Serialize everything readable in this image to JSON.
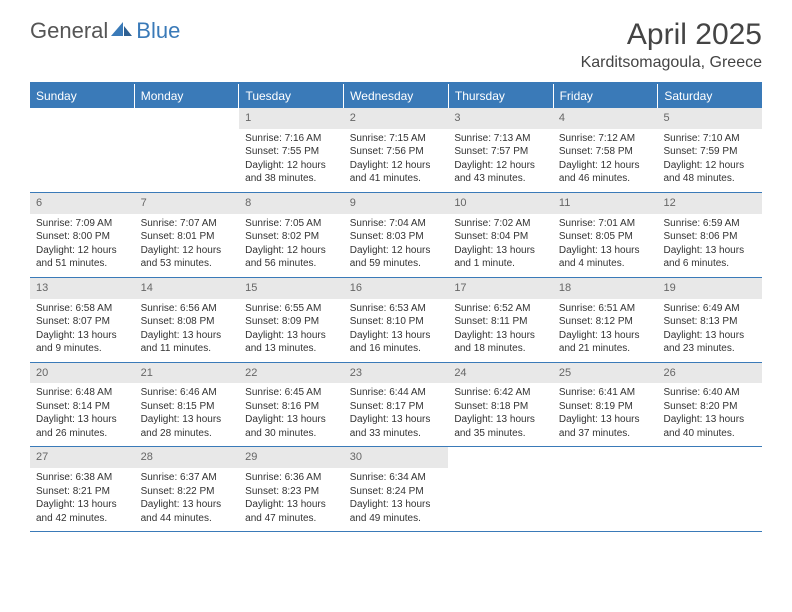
{
  "logo": {
    "text_general": "General",
    "text_blue": "Blue"
  },
  "title": "April 2025",
  "location": "Karditsomagoula, Greece",
  "colors": {
    "header_bg": "#3a7ab8",
    "header_text": "#ffffff",
    "daynum_bg": "#e8e8e8",
    "daynum_text": "#666666",
    "border": "#3a7ab8",
    "body_text": "#333333",
    "title_text": "#444444"
  },
  "day_headers": [
    "Sunday",
    "Monday",
    "Tuesday",
    "Wednesday",
    "Thursday",
    "Friday",
    "Saturday"
  ],
  "weeks": [
    [
      null,
      null,
      {
        "n": "1",
        "sunrise": "Sunrise: 7:16 AM",
        "sunset": "Sunset: 7:55 PM",
        "daylight": "Daylight: 12 hours and 38 minutes."
      },
      {
        "n": "2",
        "sunrise": "Sunrise: 7:15 AM",
        "sunset": "Sunset: 7:56 PM",
        "daylight": "Daylight: 12 hours and 41 minutes."
      },
      {
        "n": "3",
        "sunrise": "Sunrise: 7:13 AM",
        "sunset": "Sunset: 7:57 PM",
        "daylight": "Daylight: 12 hours and 43 minutes."
      },
      {
        "n": "4",
        "sunrise": "Sunrise: 7:12 AM",
        "sunset": "Sunset: 7:58 PM",
        "daylight": "Daylight: 12 hours and 46 minutes."
      },
      {
        "n": "5",
        "sunrise": "Sunrise: 7:10 AM",
        "sunset": "Sunset: 7:59 PM",
        "daylight": "Daylight: 12 hours and 48 minutes."
      }
    ],
    [
      {
        "n": "6",
        "sunrise": "Sunrise: 7:09 AM",
        "sunset": "Sunset: 8:00 PM",
        "daylight": "Daylight: 12 hours and 51 minutes."
      },
      {
        "n": "7",
        "sunrise": "Sunrise: 7:07 AM",
        "sunset": "Sunset: 8:01 PM",
        "daylight": "Daylight: 12 hours and 53 minutes."
      },
      {
        "n": "8",
        "sunrise": "Sunrise: 7:05 AM",
        "sunset": "Sunset: 8:02 PM",
        "daylight": "Daylight: 12 hours and 56 minutes."
      },
      {
        "n": "9",
        "sunrise": "Sunrise: 7:04 AM",
        "sunset": "Sunset: 8:03 PM",
        "daylight": "Daylight: 12 hours and 59 minutes."
      },
      {
        "n": "10",
        "sunrise": "Sunrise: 7:02 AM",
        "sunset": "Sunset: 8:04 PM",
        "daylight": "Daylight: 13 hours and 1 minute."
      },
      {
        "n": "11",
        "sunrise": "Sunrise: 7:01 AM",
        "sunset": "Sunset: 8:05 PM",
        "daylight": "Daylight: 13 hours and 4 minutes."
      },
      {
        "n": "12",
        "sunrise": "Sunrise: 6:59 AM",
        "sunset": "Sunset: 8:06 PM",
        "daylight": "Daylight: 13 hours and 6 minutes."
      }
    ],
    [
      {
        "n": "13",
        "sunrise": "Sunrise: 6:58 AM",
        "sunset": "Sunset: 8:07 PM",
        "daylight": "Daylight: 13 hours and 9 minutes."
      },
      {
        "n": "14",
        "sunrise": "Sunrise: 6:56 AM",
        "sunset": "Sunset: 8:08 PM",
        "daylight": "Daylight: 13 hours and 11 minutes."
      },
      {
        "n": "15",
        "sunrise": "Sunrise: 6:55 AM",
        "sunset": "Sunset: 8:09 PM",
        "daylight": "Daylight: 13 hours and 13 minutes."
      },
      {
        "n": "16",
        "sunrise": "Sunrise: 6:53 AM",
        "sunset": "Sunset: 8:10 PM",
        "daylight": "Daylight: 13 hours and 16 minutes."
      },
      {
        "n": "17",
        "sunrise": "Sunrise: 6:52 AM",
        "sunset": "Sunset: 8:11 PM",
        "daylight": "Daylight: 13 hours and 18 minutes."
      },
      {
        "n": "18",
        "sunrise": "Sunrise: 6:51 AM",
        "sunset": "Sunset: 8:12 PM",
        "daylight": "Daylight: 13 hours and 21 minutes."
      },
      {
        "n": "19",
        "sunrise": "Sunrise: 6:49 AM",
        "sunset": "Sunset: 8:13 PM",
        "daylight": "Daylight: 13 hours and 23 minutes."
      }
    ],
    [
      {
        "n": "20",
        "sunrise": "Sunrise: 6:48 AM",
        "sunset": "Sunset: 8:14 PM",
        "daylight": "Daylight: 13 hours and 26 minutes."
      },
      {
        "n": "21",
        "sunrise": "Sunrise: 6:46 AM",
        "sunset": "Sunset: 8:15 PM",
        "daylight": "Daylight: 13 hours and 28 minutes."
      },
      {
        "n": "22",
        "sunrise": "Sunrise: 6:45 AM",
        "sunset": "Sunset: 8:16 PM",
        "daylight": "Daylight: 13 hours and 30 minutes."
      },
      {
        "n": "23",
        "sunrise": "Sunrise: 6:44 AM",
        "sunset": "Sunset: 8:17 PM",
        "daylight": "Daylight: 13 hours and 33 minutes."
      },
      {
        "n": "24",
        "sunrise": "Sunrise: 6:42 AM",
        "sunset": "Sunset: 8:18 PM",
        "daylight": "Daylight: 13 hours and 35 minutes."
      },
      {
        "n": "25",
        "sunrise": "Sunrise: 6:41 AM",
        "sunset": "Sunset: 8:19 PM",
        "daylight": "Daylight: 13 hours and 37 minutes."
      },
      {
        "n": "26",
        "sunrise": "Sunrise: 6:40 AM",
        "sunset": "Sunset: 8:20 PM",
        "daylight": "Daylight: 13 hours and 40 minutes."
      }
    ],
    [
      {
        "n": "27",
        "sunrise": "Sunrise: 6:38 AM",
        "sunset": "Sunset: 8:21 PM",
        "daylight": "Daylight: 13 hours and 42 minutes."
      },
      {
        "n": "28",
        "sunrise": "Sunrise: 6:37 AM",
        "sunset": "Sunset: 8:22 PM",
        "daylight": "Daylight: 13 hours and 44 minutes."
      },
      {
        "n": "29",
        "sunrise": "Sunrise: 6:36 AM",
        "sunset": "Sunset: 8:23 PM",
        "daylight": "Daylight: 13 hours and 47 minutes."
      },
      {
        "n": "30",
        "sunrise": "Sunrise: 6:34 AM",
        "sunset": "Sunset: 8:24 PM",
        "daylight": "Daylight: 13 hours and 49 minutes."
      },
      null,
      null,
      null
    ]
  ]
}
